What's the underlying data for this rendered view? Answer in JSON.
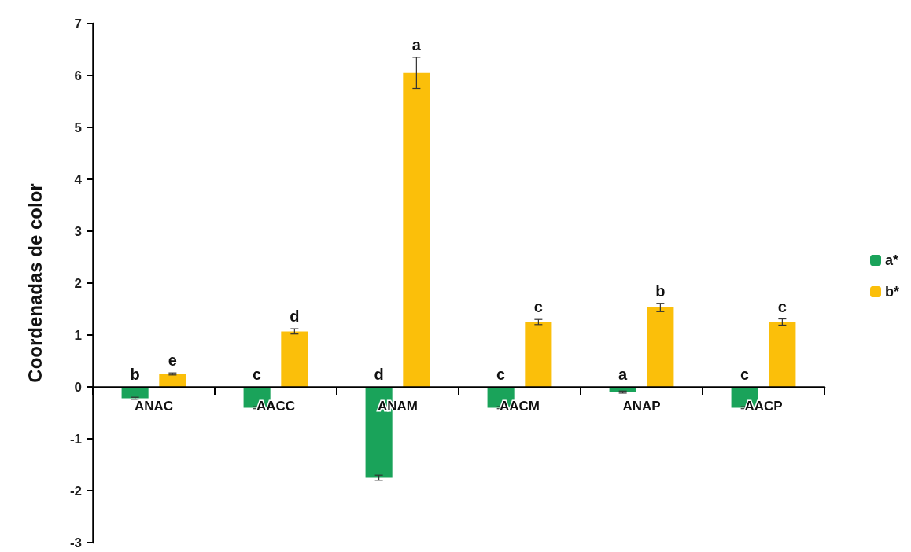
{
  "chart_data": {
    "type": "bar",
    "ylabel": "Coordenadas de color",
    "categories": [
      "ANAC",
      "AACC",
      "ANAM",
      "AACM",
      "ANAP",
      "AACP"
    ],
    "series": [
      {
        "name": "a*",
        "color": "#1aa35a",
        "values": [
          -0.22,
          -0.4,
          -1.75,
          -0.4,
          -0.1,
          -0.4
        ],
        "errors": [
          0.02,
          0.02,
          0.05,
          0.02,
          0.02,
          0.02
        ],
        "value_labels": [
          "b",
          "c",
          "d",
          "c",
          "a",
          "c"
        ]
      },
      {
        "name": "b*",
        "color": "#fbbf0a",
        "values": [
          0.25,
          1.07,
          6.05,
          1.25,
          1.53,
          1.25
        ],
        "errors": [
          0.02,
          0.05,
          0.3,
          0.05,
          0.08,
          0.06
        ],
        "value_labels": [
          "e",
          "d",
          "a",
          "c",
          "b",
          "c"
        ]
      }
    ],
    "ylim": [
      -3,
      7
    ],
    "yticks": [
      -3,
      -2,
      -1,
      0,
      1,
      2,
      3,
      4,
      5,
      6,
      7
    ],
    "grid": false,
    "legend": "right"
  }
}
